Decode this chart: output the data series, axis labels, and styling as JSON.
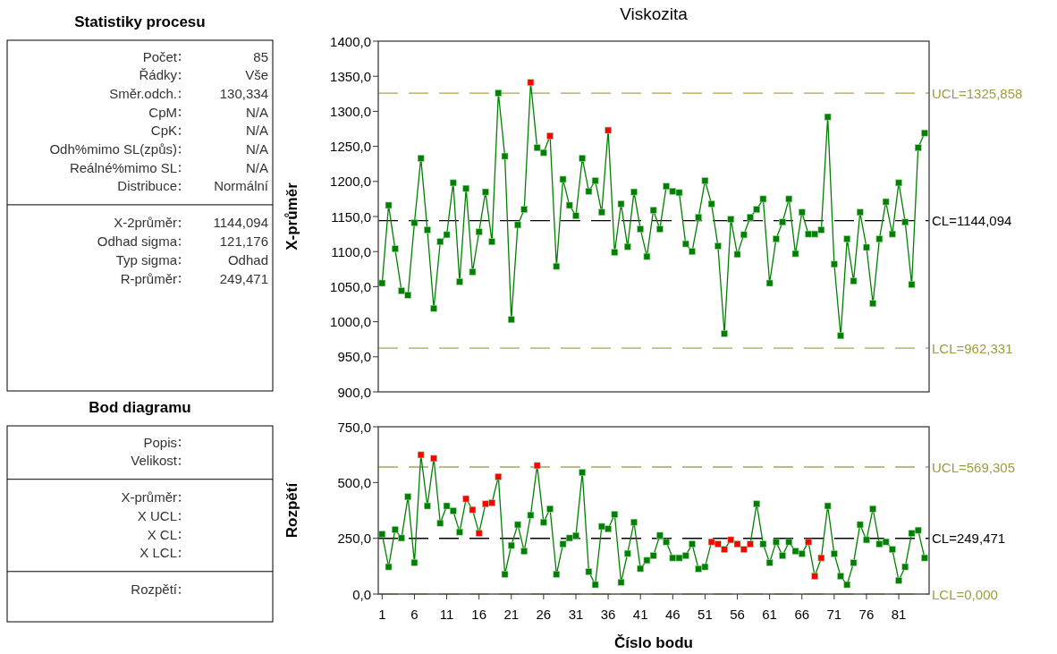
{
  "chart_data": [
    {
      "type": "other",
      "title": "Statistiky procesu",
      "categories": [
        "Počet",
        "Řádky",
        "Směr.odch.",
        "CpM",
        "CpK",
        "Odh%mimo SL(způs)",
        "Reálné%mimo SL",
        "Distribuce",
        null,
        "X-2průměr",
        "Odhad sigma",
        "Typ sigma",
        "R-průměr"
      ],
      "value_labels": [
        "85",
        "Vše",
        "130,334",
        "N/A",
        "N/A",
        "N/A",
        "N/A",
        "Normální",
        null,
        "1144,094",
        "121,176",
        "Odhad",
        "249,471"
      ]
    },
    {
      "type": "line",
      "title": "Viskozita",
      "ylabel": "X-průměr",
      "marker": "square",
      "line_style": "solid",
      "tick_labels": "y",
      "x": [
        1,
        2,
        3,
        4,
        5,
        6,
        7,
        8,
        9,
        10,
        11,
        12,
        13,
        14,
        15,
        16,
        17,
        18,
        19,
        20,
        21,
        22,
        23,
        24,
        25,
        26,
        27,
        28,
        29,
        30,
        31,
        32,
        33,
        34,
        35,
        36,
        37,
        38,
        39,
        40,
        41,
        42,
        43,
        44,
        45,
        46,
        47,
        48,
        49,
        50,
        51,
        52,
        53,
        54,
        55,
        56,
        57,
        58,
        59,
        60,
        61,
        62,
        63,
        64,
        65,
        66,
        67,
        68,
        69,
        70,
        71,
        72,
        73,
        74,
        75,
        76,
        77,
        78,
        79,
        80,
        81,
        82,
        83,
        84,
        85
      ],
      "xlim": [
        0.4,
        85.7
      ],
      "ylim": [
        900,
        1400
      ],
      "yticks": [
        {
          "value": 900,
          "label": "900,0"
        },
        {
          "value": 950,
          "label": "950,0"
        },
        {
          "value": 1000,
          "label": "1000,0"
        },
        {
          "value": 1050,
          "label": "1050,0"
        },
        {
          "value": 1100,
          "label": "1100,0"
        },
        {
          "value": 1150,
          "label": "1150,0"
        },
        {
          "value": 1200,
          "label": "1200,0"
        },
        {
          "value": 1250,
          "label": "1250,0"
        },
        {
          "value": 1300,
          "label": "1300,0"
        },
        {
          "value": 1350,
          "label": "1350,0"
        },
        {
          "value": 1400,
          "label": "1400,0"
        }
      ],
      "ref_lines": [
        {
          "axis": "y",
          "value": 1325.858,
          "label": "UCL=1325,858",
          "color": "#a8a45c",
          "line_style": "dashed"
        },
        {
          "axis": "y",
          "value": 1144.094,
          "label": "CL=1144,094",
          "color": "#000000",
          "line_style": "dashed"
        },
        {
          "axis": "y",
          "value": 962.331,
          "label": "LCL=962,331",
          "color": "#a8a45c",
          "line_style": "dashed"
        }
      ],
      "series": [
        {
          "color": "#008000",
          "values": [
            1055,
            1166,
            1104,
            1044,
            1038,
            1141,
            1233,
            1131,
            1019,
            1114,
            1124,
            1198,
            1057,
            1190,
            1071,
            1128,
            1185,
            1114,
            1326,
            1236,
            1003,
            1138,
            1160,
            1341,
            1248,
            1241,
            1265,
            1079,
            1203,
            1166,
            1151,
            1233,
            1186,
            1201,
            1156,
            1273,
            1099,
            1168,
            1107,
            1185,
            1132,
            1093,
            1159,
            1132,
            1193,
            1186,
            1184,
            1111,
            1100,
            1149,
            1201,
            1168,
            1108,
            983,
            1146,
            1096,
            1124,
            1149,
            1160,
            1175,
            1055,
            1118,
            1142,
            1175,
            1097,
            1156,
            1125,
            1125,
            1131,
            1292,
            1082,
            980,
            1118,
            1058,
            1156,
            1106,
            1026,
            1118,
            1171,
            1125,
            1198,
            1142,
            1053,
            1248,
            1269
          ],
          "colors": [
            "#008000",
            "#008000",
            "#008000",
            "#008000",
            "#008000",
            "#008000",
            "#008000",
            "#008000",
            "#008000",
            "#008000",
            "#008000",
            "#008000",
            "#008000",
            "#008000",
            "#008000",
            "#008000",
            "#008000",
            "#008000",
            "#008000",
            "#008000",
            "#008000",
            "#008000",
            "#008000",
            "#ff0000",
            "#008000",
            "#008000",
            "#ff0000",
            "#008000",
            "#008000",
            "#008000",
            "#008000",
            "#008000",
            "#008000",
            "#008000",
            "#008000",
            "#ff0000",
            "#008000",
            "#008000",
            "#008000",
            "#008000",
            "#008000",
            "#008000",
            "#008000",
            "#008000",
            "#008000",
            "#008000",
            "#008000",
            "#008000",
            "#008000",
            "#008000",
            "#008000",
            "#008000",
            "#008000",
            "#008000",
            "#008000",
            "#008000",
            "#008000",
            "#008000",
            "#008000",
            "#008000",
            "#008000",
            "#008000",
            "#008000",
            "#008000",
            "#008000",
            "#008000",
            "#008000",
            "#008000",
            "#008000",
            "#008000",
            "#008000",
            "#008000",
            "#008000",
            "#008000",
            "#008000",
            "#008000",
            "#008000",
            "#008000",
            "#008000",
            "#008000",
            "#008000",
            "#008000",
            "#008000",
            "#008000",
            "#008000"
          ]
        }
      ]
    },
    {
      "type": "other",
      "title": "Bod diagramu",
      "categories": [
        "Popis",
        "Velikost",
        null,
        "X-průměr",
        "X UCL",
        "X CL",
        "X LCL",
        null,
        "Rozpětí"
      ]
    },
    {
      "type": "line",
      "ylabel": "Rozpětí",
      "xlabel": "Číslo bodu",
      "marker": "square",
      "line_style": "solid",
      "x": [
        1,
        2,
        3,
        4,
        5,
        6,
        7,
        8,
        9,
        10,
        11,
        12,
        13,
        14,
        15,
        16,
        17,
        18,
        19,
        20,
        21,
        22,
        23,
        24,
        25,
        26,
        27,
        28,
        29,
        30,
        31,
        32,
        33,
        34,
        35,
        36,
        37,
        38,
        39,
        40,
        41,
        42,
        43,
        44,
        45,
        46,
        47,
        48,
        49,
        50,
        51,
        52,
        53,
        54,
        55,
        56,
        57,
        58,
        59,
        60,
        61,
        62,
        63,
        64,
        65,
        66,
        67,
        68,
        69,
        70,
        71,
        72,
        73,
        74,
        75,
        76,
        77,
        78,
        79,
        80,
        81,
        82,
        83,
        84,
        85
      ],
      "xlim": [
        0.4,
        85.7
      ],
      "xticks": [
        1,
        6,
        11,
        16,
        21,
        26,
        31,
        36,
        41,
        46,
        51,
        56,
        61,
        66,
        71,
        76,
        81
      ],
      "ylim": [
        0,
        750
      ],
      "yticks": [
        {
          "value": 0,
          "label": "0,0"
        },
        {
          "value": 250,
          "label": "250,0"
        },
        {
          "value": 500,
          "label": "500,0"
        },
        {
          "value": 750,
          "label": "750,0"
        }
      ],
      "ref_lines": [
        {
          "axis": "y",
          "value": 569.305,
          "label": "UCL=569,305",
          "color": "#a8a45c",
          "line_style": "dashed"
        },
        {
          "axis": "y",
          "value": 249.471,
          "label": "CL=249,471",
          "color": "#000000",
          "line_style": "dashed"
        },
        {
          "axis": "y",
          "value": 0,
          "label": "LCL=0,000",
          "color": "#a8a45c",
          "line_style": "dashed"
        }
      ],
      "series": [
        {
          "color": "#008000",
          "values": [
            268,
            122,
            289,
            251,
            436,
            141,
            624,
            395,
            608,
            318,
            395,
            373,
            278,
            427,
            378,
            273,
            404,
            409,
            526,
            89,
            218,
            311,
            192,
            354,
            576,
            322,
            382,
            89,
            224,
            251,
            262,
            545,
            100,
            42,
            303,
            292,
            357,
            53,
            182,
            322,
            114,
            151,
            172,
            263,
            234,
            162,
            162,
            172,
            224,
            113,
            122,
            234,
            224,
            200,
            243,
            224,
            200,
            224,
            404,
            224,
            141,
            234,
            172,
            234,
            192,
            181,
            234,
            80,
            162,
            395,
            181,
            80,
            42,
            140,
            311,
            243,
            382,
            224,
            234,
            200,
            61,
            122,
            272,
            286,
            162
          ],
          "colors": [
            "#008000",
            "#008000",
            "#008000",
            "#008000",
            "#008000",
            "#008000",
            "#ff0000",
            "#008000",
            "#ff0000",
            "#008000",
            "#008000",
            "#008000",
            "#008000",
            "#ff0000",
            "#ff0000",
            "#ff0000",
            "#ff0000",
            "#ff0000",
            "#ff0000",
            "#008000",
            "#008000",
            "#008000",
            "#008000",
            "#008000",
            "#ff0000",
            "#008000",
            "#008000",
            "#008000",
            "#008000",
            "#008000",
            "#008000",
            "#008000",
            "#008000",
            "#008000",
            "#008000",
            "#008000",
            "#008000",
            "#008000",
            "#008000",
            "#008000",
            "#008000",
            "#008000",
            "#008000",
            "#008000",
            "#008000",
            "#008000",
            "#008000",
            "#008000",
            "#008000",
            "#008000",
            "#008000",
            "#ff0000",
            "#ff0000",
            "#ff0000",
            "#ff0000",
            "#ff0000",
            "#ff0000",
            "#ff0000",
            "#008000",
            "#008000",
            "#008000",
            "#008000",
            "#008000",
            "#008000",
            "#008000",
            "#008000",
            "#ff0000",
            "#ff0000",
            "#ff0000",
            "#008000",
            "#008000",
            "#008000",
            "#008000",
            "#008000",
            "#008000",
            "#008000",
            "#008000",
            "#008000",
            "#008000",
            "#008000",
            "#008000",
            "#008000",
            "#008000",
            "#008000",
            "#008000"
          ]
        }
      ]
    }
  ]
}
